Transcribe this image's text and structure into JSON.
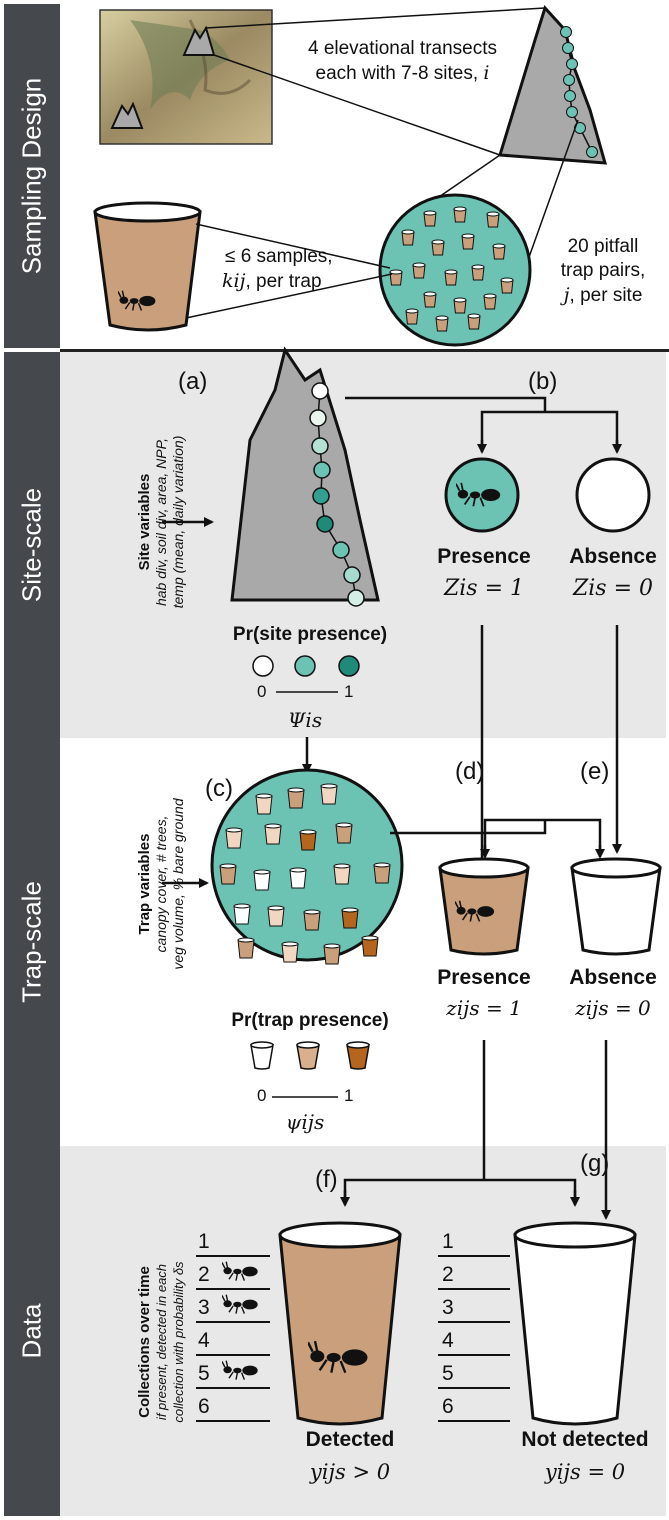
{
  "sections": [
    {
      "id": "sampling",
      "label": "Sampling Design"
    },
    {
      "id": "site",
      "label": "Site-scale"
    },
    {
      "id": "trap",
      "label": "Trap-scale"
    },
    {
      "id": "data",
      "label": "Data"
    }
  ],
  "sampling": {
    "transects_line1": "4 elevational transects",
    "transects_line2": "each with 7-8 sites,",
    "transects_var": "i",
    "samples_line1": "≤ 6 samples,",
    "samples_var": "kij",
    "samples_line2": ", per trap",
    "pitfall_line1": "20 pitfall",
    "pitfall_line2": "trap pairs,",
    "pitfall_var": "j",
    "pitfall_line3": "per site"
  },
  "site": {
    "label_a": "(a)",
    "label_b": "(b)",
    "variables_title": "Site variables",
    "variables_line1": "hab div, soil div, area, NPP,",
    "variables_line2": "temp (mean, daily variation)",
    "pr_title": "Pr(site presence)",
    "scale_min": "0",
    "scale_max": "1",
    "psi": "Ψis",
    "presence_label": "Presence",
    "presence_eq": "Zis = 1",
    "absence_label": "Absence",
    "absence_eq": "Zis = 0"
  },
  "trap": {
    "label_c": "(c)",
    "label_d": "(d)",
    "label_e": "(e)",
    "variables_title": "Trap variables",
    "variables_line1": "canopy cover, # trees,",
    "variables_line2": "veg volume, % bare ground",
    "pr_title": "Pr(trap presence)",
    "scale_min": "0",
    "scale_max": "1",
    "psi": "ψijs",
    "presence_label": "Presence",
    "presence_eq": "zijs = 1",
    "absence_label": "Absence",
    "absence_eq": "zijs = 0"
  },
  "data": {
    "label_f": "(f)",
    "label_g": "(g)",
    "collections_title": "Collections over time",
    "collections_line1": "if present, detected in each",
    "collections_line2": "collection with probability δs",
    "numbers": [
      "1",
      "2",
      "3",
      "4",
      "5",
      "6"
    ],
    "detected_label": "Detected",
    "detected_eq": "yijs > 0",
    "not_detected_label": "Not detected",
    "not_detected_eq": "yijs = 0"
  },
  "colors": {
    "sidebar": "#45484c",
    "teal": "#6cc3b3",
    "teal_dark": "#1f8a78",
    "cup_tan": "#c99f7c",
    "cup_brown": "#b5651d",
    "mountain": "#a9a9a9"
  }
}
